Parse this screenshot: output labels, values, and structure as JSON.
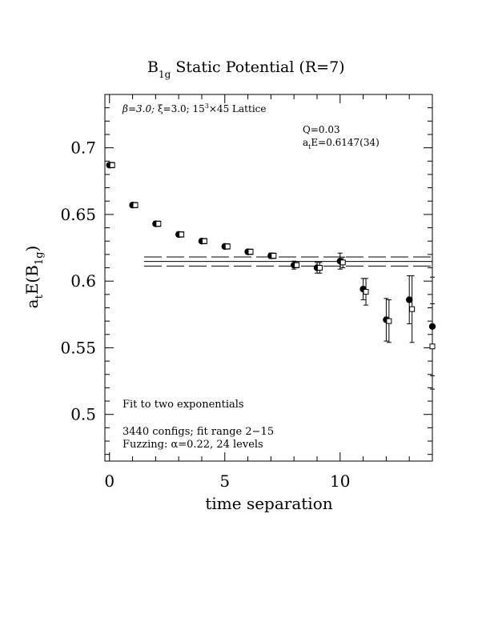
{
  "chart_data": {
    "type": "scatter",
    "title_main": "B",
    "title_sub": "1g",
    "title_rest": " Static Potential (R=7)",
    "xlabel": "time separation",
    "ylabel_pre": "a",
    "ylabel_sub_t": "t",
    "ylabel_mid": "E(B",
    "ylabel_sub_1g": "1g",
    "ylabel_post": ")",
    "xlim": [
      -0.2,
      14
    ],
    "ylim": [
      0.465,
      0.74
    ],
    "xticks": [
      0,
      5,
      10
    ],
    "xtick_labels": [
      "0",
      "5",
      "10"
    ],
    "yticks": [
      0.5,
      0.55,
      0.6,
      0.65,
      0.7
    ],
    "ytick_labels": [
      "0.5",
      "0.55",
      "0.6",
      "0.65",
      "0.7"
    ],
    "annotations": {
      "lattice_beta": "β=3.0; ",
      "lattice_xi": "ξ=3.0; 15",
      "lattice_exp": "3",
      "lattice_rest": "×45 Lattice",
      "q_value": "Q=0.03",
      "fit_energy_pre": "a",
      "fit_energy_sub": "t",
      "fit_energy_post": "E=0.6147(34)",
      "fit_type": "Fit to two exponentials",
      "configs": "3440 configs; fit range 2−15",
      "fuzzing": "Fuzzing: α=0.22, 24 levels"
    },
    "fit": {
      "value": 0.6147,
      "error": 0.0034,
      "x_range": [
        1.5,
        14
      ]
    },
    "series": [
      {
        "marker": "filled-circle",
        "points": [
          {
            "x": 0,
            "y": 0.687,
            "err": 0.001
          },
          {
            "x": 1,
            "y": 0.657,
            "err": 0.001
          },
          {
            "x": 2,
            "y": 0.643,
            "err": 0.0015
          },
          {
            "x": 3,
            "y": 0.635,
            "err": 0.0015
          },
          {
            "x": 4,
            "y": 0.63,
            "err": 0.0015
          },
          {
            "x": 5,
            "y": 0.626,
            "err": 0.0015
          },
          {
            "x": 6,
            "y": 0.622,
            "err": 0.0015
          },
          {
            "x": 7,
            "y": 0.619,
            "err": 0.002
          },
          {
            "x": 8,
            "y": 0.612,
            "err": 0.003
          },
          {
            "x": 9,
            "y": 0.61,
            "err": 0.004
          },
          {
            "x": 10,
            "y": 0.615,
            "err": 0.006
          },
          {
            "x": 11,
            "y": 0.594,
            "err": 0.008
          },
          {
            "x": 12,
            "y": 0.571,
            "err": 0.016
          },
          {
            "x": 13,
            "y": 0.586,
            "err": 0.018
          },
          {
            "x": 14,
            "y": 0.566,
            "err": 0.037
          }
        ]
      },
      {
        "marker": "open-square",
        "points": [
          {
            "x": 0.12,
            "y": 0.687,
            "err": 0.002
          },
          {
            "x": 1.12,
            "y": 0.657,
            "err": 0.002
          },
          {
            "x": 2.12,
            "y": 0.643,
            "err": 0.002
          },
          {
            "x": 3.12,
            "y": 0.635,
            "err": 0.002
          },
          {
            "x": 4.12,
            "y": 0.63,
            "err": 0.002
          },
          {
            "x": 5.12,
            "y": 0.626,
            "err": 0.002
          },
          {
            "x": 6.12,
            "y": 0.622,
            "err": 0.002
          },
          {
            "x": 7.12,
            "y": 0.619,
            "err": 0.002
          },
          {
            "x": 8.12,
            "y": 0.612,
            "err": 0.002
          },
          {
            "x": 9.12,
            "y": 0.61,
            "err": 0.004
          },
          {
            "x": 10.12,
            "y": 0.614,
            "err": 0.004
          },
          {
            "x": 11.12,
            "y": 0.592,
            "err": 0.01
          },
          {
            "x": 12.12,
            "y": 0.57,
            "err": 0.016
          },
          {
            "x": 13.12,
            "y": 0.579,
            "err": 0.025
          },
          {
            "x": 14.12,
            "y": 0.551,
            "err": 0.032
          }
        ]
      }
    ]
  }
}
